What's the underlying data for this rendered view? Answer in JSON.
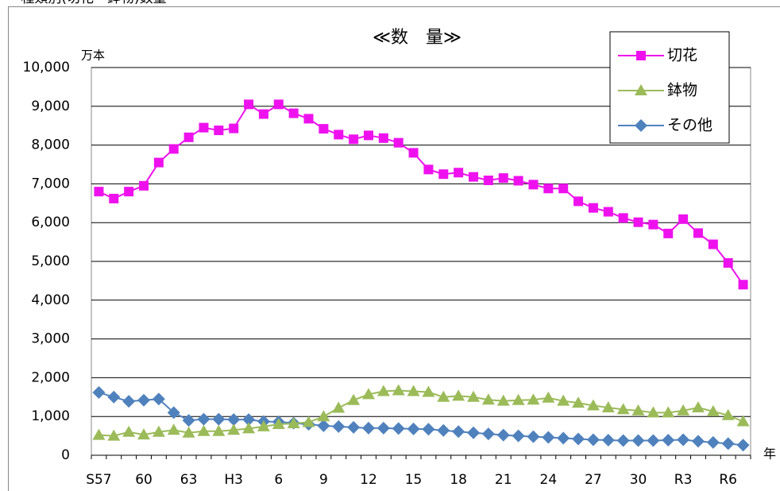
{
  "heading": "・ 種類別(切花・鉢物)数量",
  "chart_data": {
    "type": "line",
    "title": "≪数　量≫",
    "y_unit": "万本",
    "x_unit": "年",
    "categories": [
      "S57",
      null,
      null,
      "60",
      null,
      null,
      "63",
      null,
      null,
      "H3",
      null,
      null,
      "6",
      null,
      null,
      "9",
      null,
      null,
      "12",
      null,
      null,
      "15",
      null,
      null,
      "18",
      null,
      null,
      "21",
      null,
      null,
      "24",
      null,
      null,
      "27",
      null,
      null,
      "30",
      null,
      null,
      "R3",
      null,
      null,
      "R6",
      null
    ],
    "series": [
      {
        "name": "切花",
        "color": "#ee11ee",
        "marker": "square",
        "values": [
          6800,
          6620,
          6800,
          6950,
          7550,
          7900,
          8200,
          8450,
          8380,
          8430,
          9050,
          8800,
          9050,
          8820,
          8680,
          8420,
          8270,
          8150,
          8250,
          8180,
          8060,
          7800,
          7370,
          7250,
          7290,
          7180,
          7090,
          7150,
          7080,
          6980,
          6880,
          6880,
          6550,
          6380,
          6280,
          6120,
          6010,
          5950,
          5720,
          6090,
          5730,
          5440,
          4960,
          4400
        ]
      },
      {
        "name": "鉢物",
        "color": "#9bbb59",
        "marker": "triangle",
        "values": [
          520,
          500,
          600,
          530,
          600,
          650,
          580,
          620,
          620,
          650,
          690,
          740,
          800,
          820,
          850,
          1000,
          1220,
          1420,
          1570,
          1650,
          1670,
          1650,
          1630,
          1500,
          1530,
          1500,
          1430,
          1400,
          1420,
          1430,
          1480,
          1400,
          1350,
          1280,
          1230,
          1180,
          1150,
          1100,
          1100,
          1150,
          1230,
          1130,
          1030,
          870
        ]
      },
      {
        "name": "その他",
        "color": "#4f81bd",
        "marker": "diamond",
        "values": [
          1620,
          1500,
          1390,
          1420,
          1450,
          1100,
          900,
          930,
          930,
          920,
          920,
          870,
          860,
          830,
          800,
          760,
          740,
          720,
          700,
          700,
          690,
          680,
          670,
          640,
          610,
          580,
          550,
          520,
          500,
          480,
          460,
          440,
          420,
          400,
          390,
          380,
          380,
          380,
          390,
          400,
          360,
          330,
          300,
          260
        ]
      }
    ],
    "ylim": [
      0,
      10000
    ],
    "yticks": [
      0,
      {
        "value": 1000,
        "label": "1,000"
      },
      {
        "value": 2000,
        "label": "2,000"
      },
      {
        "value": 3000,
        "label": "3,000"
      },
      {
        "value": 4000,
        "label": "4,000"
      },
      {
        "value": 5000,
        "label": "5,000"
      },
      {
        "value": 6000,
        "label": "6,000"
      },
      {
        "value": 7000,
        "label": "7,000"
      },
      {
        "value": 8000,
        "label": "8,000"
      },
      {
        "value": 9000,
        "label": "9,000"
      },
      {
        "value": 10000,
        "label": "10,000"
      }
    ],
    "grid": true,
    "legend": "upper right"
  }
}
